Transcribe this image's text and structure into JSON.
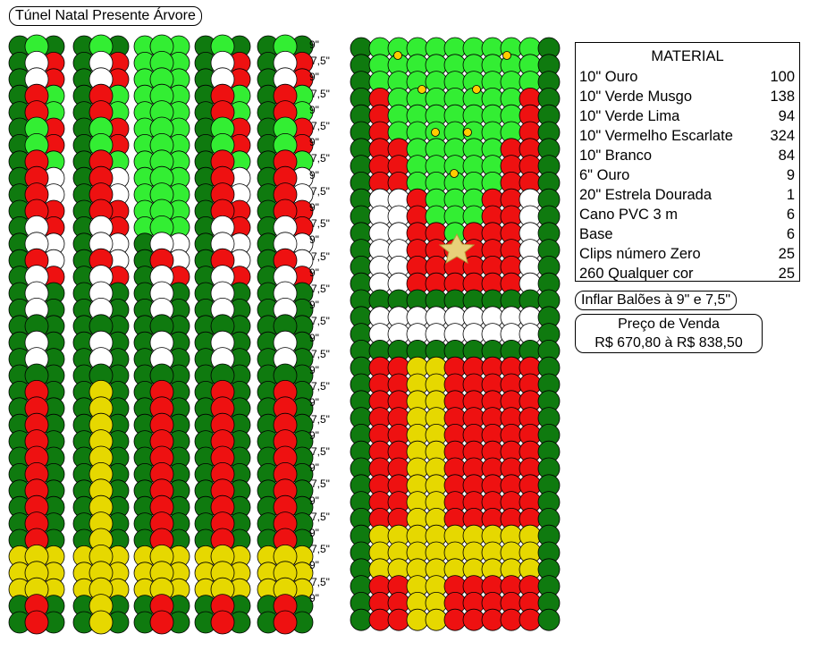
{
  "title": "Túnel Natal Presente Árvore",
  "material": {
    "header": "MATERIAL",
    "items": [
      {
        "name": "10\" Ouro",
        "qty": "100"
      },
      {
        "name": "10\" Verde Musgo",
        "qty": "138"
      },
      {
        "name": "10\" Verde Lima",
        "qty": "94"
      },
      {
        "name": "10\" Vermelho Escarlate",
        "qty": "324"
      },
      {
        "name": "10\" Branco",
        "qty": "84"
      },
      {
        "name": "6\" Ouro",
        "qty": "9"
      },
      {
        "name": "20\" Estrela Dourada",
        "qty": "1"
      },
      {
        "name": "Cano PVC 3 m",
        "qty": "6"
      },
      {
        "name": "Base",
        "qty": "6"
      },
      {
        "name": "Clips número Zero",
        "qty": "25"
      },
      {
        "name": "260 Qualquer cor",
        "qty": "25"
      }
    ]
  },
  "inflate_note": "Inflar Balões à 9\" e 7,5\"",
  "price": {
    "label": "Preço de Venda",
    "value": "R$ 670,80 à R$ 838,50"
  },
  "size_labels": [
    "9\"",
    "7,5\"",
    "9\"",
    "7,5\"",
    "9\"",
    "7,5\"",
    "9\"",
    "7,5\"",
    "9\"",
    "7,5\"",
    "9\"",
    "7,5\"",
    "9\"",
    "7,5\"",
    "9\"",
    "7,5\"",
    "9\"",
    "7,5\"",
    "9\"",
    "7,5\"",
    "9\"",
    "7,5\"",
    "9\"",
    "7,5\"",
    "9\"",
    "7,5\"",
    "9\"",
    "7,5\"",
    "9\"",
    "7,5\"",
    "9\"",
    "7,5\"",
    "9\"",
    "7,5\"",
    "9\""
  ],
  "colors": {
    "dark_green": "#0f7a0f",
    "lime": "#33ee33",
    "red": "#ee1111",
    "white": "#ffffff",
    "yellow": "#e6d800",
    "gold": "#ffcc00",
    "star": "#e8d07a"
  }
}
